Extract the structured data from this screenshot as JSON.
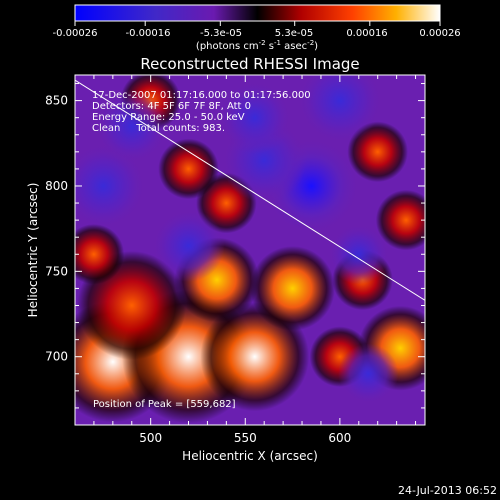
{
  "chart_data": {
    "type": "heatmap",
    "title": "Reconstructed RHESSI Image",
    "xlabel": "Heliocentric X (arcsec)",
    "ylabel": "Heliocentric Y (arcsec)",
    "xlim": [
      460,
      645
    ],
    "ylim": [
      660,
      865
    ],
    "x_ticks": [
      500,
      550,
      600
    ],
    "y_ticks": [
      700,
      750,
      800,
      850
    ],
    "colorbar": {
      "ticks": [
        "-0.00026",
        "-0.00016",
        "-5.3e-05",
        "5.3e-05",
        "0.00016",
        "0.00026"
      ],
      "tick_values": [
        -0.00026,
        -0.00016,
        -5.3e-05,
        5.3e-05,
        0.00016,
        0.00026
      ],
      "label": "(photons cm",
      "label_sup1": "-2",
      "label_mid": " s",
      "label_sup2": "-1",
      "label_mid2": " asec",
      "label_sup3": "-2",
      "label_end": ")",
      "range": [
        -0.00026,
        0.00026
      ]
    },
    "annotations": [
      "17-Dec-2007 01:17:16.000 to 01:17:56.000",
      "Detectors: 4F 5F 6F 7F 8F, Att 0",
      "Energy Range: 25.0 - 50.0 keV",
      "Clean     Total counts: 983."
    ],
    "peak_label": "Position of Peak = [559,682]",
    "limb_line": [
      [
        460,
        862
      ],
      [
        645,
        733
      ]
    ],
    "blobs": [
      {
        "x": 480,
        "y": 697,
        "v": 1.0,
        "s": 20
      },
      {
        "x": 520,
        "y": 700,
        "v": 0.95,
        "s": 22
      },
      {
        "x": 555,
        "y": 700,
        "v": 0.9,
        "s": 18
      },
      {
        "x": 575,
        "y": 740,
        "v": 0.75,
        "s": 14
      },
      {
        "x": 535,
        "y": 745,
        "v": 0.75,
        "s": 14
      },
      {
        "x": 490,
        "y": 730,
        "v": 0.6,
        "s": 18
      },
      {
        "x": 632,
        "y": 705,
        "v": 0.8,
        "s": 14
      },
      {
        "x": 540,
        "y": 790,
        "v": 0.6,
        "s": 10
      },
      {
        "x": 520,
        "y": 810,
        "v": 0.5,
        "s": 10
      },
      {
        "x": 600,
        "y": 700,
        "v": 0.55,
        "s": 10
      },
      {
        "x": 612,
        "y": 745,
        "v": 0.55,
        "s": 10
      },
      {
        "x": 470,
        "y": 760,
        "v": 0.45,
        "s": 10
      },
      {
        "x": 620,
        "y": 820,
        "v": 0.35,
        "s": 10
      },
      {
        "x": 635,
        "y": 780,
        "v": 0.3,
        "s": 10
      },
      {
        "x": 500,
        "y": 850,
        "v": 0.3,
        "s": 10
      },
      {
        "x": 585,
        "y": 800,
        "v": -0.85,
        "s": 16
      },
      {
        "x": 520,
        "y": 765,
        "v": -0.5,
        "s": 12
      },
      {
        "x": 475,
        "y": 800,
        "v": -0.55,
        "s": 14
      },
      {
        "x": 490,
        "y": 835,
        "v": -0.45,
        "s": 12
      },
      {
        "x": 560,
        "y": 815,
        "v": -0.45,
        "s": 14
      },
      {
        "x": 610,
        "y": 760,
        "v": -0.4,
        "s": 10
      },
      {
        "x": 615,
        "y": 690,
        "v": -0.45,
        "s": 10
      },
      {
        "x": 600,
        "y": 850,
        "v": -0.3,
        "s": 14
      },
      {
        "x": 555,
        "y": 840,
        "v": -0.3,
        "s": 12
      }
    ]
  },
  "footer": {
    "date": "24-Jul-2013 06:52"
  }
}
